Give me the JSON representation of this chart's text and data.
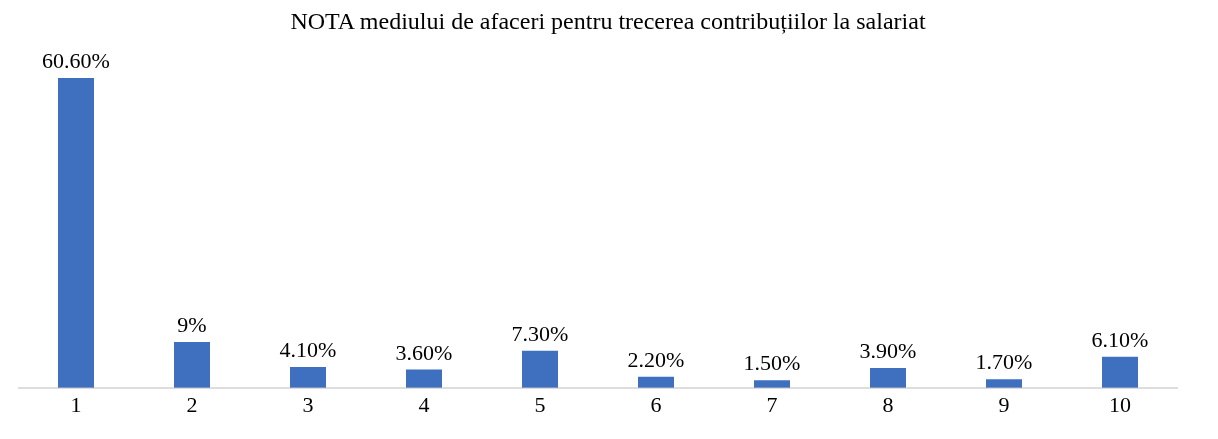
{
  "chart_data": {
    "type": "bar",
    "title": "NOTA mediului de afaceri pentru trecerea contribuțiilor la salariat",
    "categories": [
      "1",
      "2",
      "3",
      "4",
      "5",
      "6",
      "7",
      "8",
      "9",
      "10"
    ],
    "values": [
      60.6,
      9,
      4.1,
      3.6,
      7.3,
      2.2,
      1.5,
      3.9,
      1.7,
      6.1
    ],
    "value_labels": [
      "60.60%",
      "9%",
      "4.10%",
      "3.60%",
      "7.30%",
      "2.20%",
      "1.50%",
      "3.90%",
      "1.70%",
      "6.10%"
    ],
    "color": "#3f6fbf"
  }
}
